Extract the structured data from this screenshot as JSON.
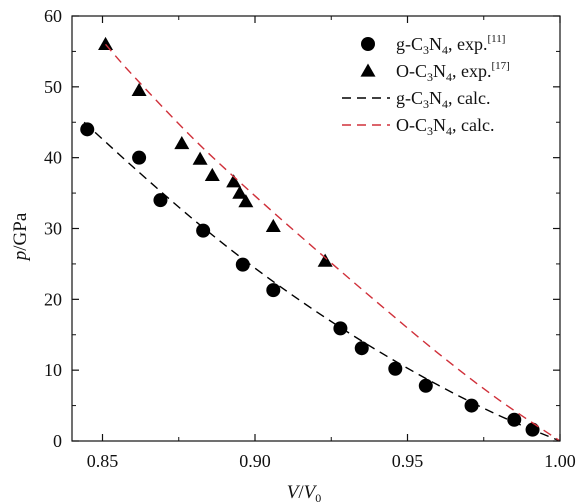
{
  "chart_data": {
    "type": "scatter",
    "xlabel": {
      "italic": "V",
      "sep": "/",
      "italic2": "V",
      "sub": "0"
    },
    "ylabel": {
      "italic": "p",
      "rest": "/GPa"
    },
    "xlim": [
      0.84,
      1.0
    ],
    "ylim": [
      0,
      60
    ],
    "xticks": [
      0.85,
      0.9,
      0.95,
      1.0
    ],
    "xtick_labels": [
      "0.85",
      "0.90",
      "0.95",
      "1.00"
    ],
    "yticks": [
      0,
      10,
      20,
      30,
      40,
      50,
      60
    ],
    "ytick_labels": [
      "0",
      "10",
      "20",
      "30",
      "40",
      "50",
      "60"
    ],
    "grid": false,
    "legend_position": "top-right",
    "series": [
      {
        "marker": "circle",
        "color": "#000000",
        "legend": {
          "a": "g-C",
          "sub1": "3",
          "b": "N",
          "sub2": "4",
          "c": ", exp.",
          "sup": "[11]"
        },
        "x": [
          0.845,
          0.862,
          0.869,
          0.883,
          0.896,
          0.906,
          0.928,
          0.935,
          0.946,
          0.956,
          0.971,
          0.985,
          0.991
        ],
        "y": [
          44.0,
          40.0,
          34.0,
          29.7,
          24.9,
          21.3,
          15.9,
          13.1,
          10.2,
          7.8,
          5.0,
          3.0,
          1.6
        ]
      },
      {
        "marker": "triangle",
        "color": "#000000",
        "legend": {
          "a": "O-C",
          "sub1": "3",
          "b": "N",
          "sub2": "4",
          "c": ", exp.",
          "sup": "[17]"
        },
        "x": [
          0.851,
          0.862,
          0.876,
          0.882,
          0.886,
          0.893,
          0.895,
          0.897,
          0.906,
          0.923
        ],
        "y": [
          56.0,
          49.5,
          42.0,
          39.8,
          37.5,
          36.6,
          35.0,
          33.8,
          30.3,
          25.4
        ]
      },
      {
        "marker": "line",
        "style": "dashed",
        "color": "#000000",
        "legend": {
          "a": "g-C",
          "sub1": "3",
          "b": "N",
          "sub2": "4",
          "c": ", calc.",
          "sup": ""
        },
        "x": [
          0.844,
          0.86,
          0.88,
          0.9,
          0.92,
          0.94,
          0.96,
          0.98,
          1.0
        ],
        "y": [
          45.0,
          38.7,
          31.2,
          24.4,
          18.3,
          12.8,
          7.9,
          3.6,
          0.0
        ]
      },
      {
        "marker": "line",
        "style": "dashed",
        "color": "#d0303a",
        "legend": {
          "a": "O-C",
          "sub1": "3",
          "b": "N",
          "sub2": "4",
          "c": ", calc.",
          "sup": ""
        },
        "x": [
          0.851,
          0.86,
          0.88,
          0.9,
          0.92,
          0.94,
          0.96,
          0.98,
          1.0
        ],
        "y": [
          56.0,
          51.6,
          42.6,
          34.6,
          27.0,
          19.6,
          12.4,
          5.8,
          0.0
        ]
      }
    ]
  }
}
